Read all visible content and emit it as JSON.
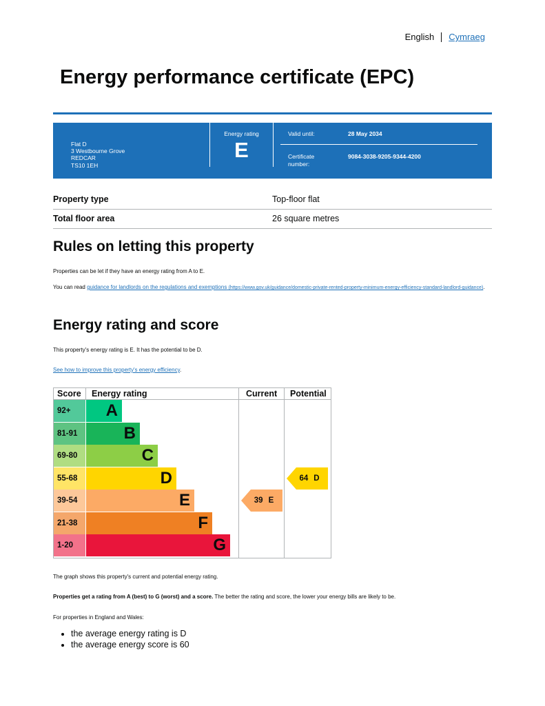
{
  "language": {
    "english": "English",
    "welsh": "Cymraeg"
  },
  "title": "Energy performance certificate (EPC)",
  "certificate": {
    "address_lines": [
      "Flat D",
      "3 Westbourne Grove",
      "REDCAR",
      "TS10 1EH"
    ],
    "energy_rating_label": "Energy rating",
    "energy_rating": "E",
    "valid_until_label": "Valid until:",
    "valid_until": "28 May 2034",
    "certificate_number_label": "Certificate number:",
    "certificate_number": "9084-3038-9205-9344-4200"
  },
  "summary": [
    {
      "label": "Property type",
      "value": "Top-floor flat"
    },
    {
      "label": "Total floor area",
      "value": "26 square metres"
    }
  ],
  "rules": {
    "heading": "Rules on letting this property",
    "para1": "Properties can be let if they have an energy rating from A to E.",
    "para2_prefix": "You can read ",
    "para2_link": "guidance for landlords on the regulations and exemptions",
    "para2_url": "(https://www.gov.uk/guidance/domestic-private-rented-property-minimum-energy-efficiency-standard-landlord-guidance)",
    "para2_suffix": "."
  },
  "rating": {
    "heading": "Energy rating and score",
    "para1": "This property's energy rating is E. It has the potential to be D.",
    "improve_link": "See how to improve this property's energy efficiency",
    "improve_suffix": "."
  },
  "chart_data": {
    "type": "table",
    "headers": {
      "score": "Score",
      "rating": "Energy rating",
      "current": "Current",
      "potential": "Potential"
    },
    "bands": [
      {
        "score": "92+",
        "letter": "A",
        "color": "#00c781",
        "score_bg": "#52c99a"
      },
      {
        "score": "81-91",
        "letter": "B",
        "color": "#19b459",
        "score_bg": "#5ec382"
      },
      {
        "score": "69-80",
        "letter": "C",
        "color": "#8dce46",
        "score_bg": "#b0dd82"
      },
      {
        "score": "55-68",
        "letter": "D",
        "color": "#ffd500",
        "score_bg": "#ffe466"
      },
      {
        "score": "39-54",
        "letter": "E",
        "color": "#fcaa65",
        "score_bg": "#fdc89a"
      },
      {
        "score": "21-38",
        "letter": "F",
        "color": "#ef8023",
        "score_bg": "#f4a76b"
      },
      {
        "score": "1-20",
        "letter": "G",
        "color": "#e9153b",
        "score_bg": "#f2728a"
      }
    ],
    "current": {
      "score": 39,
      "letter": "E",
      "color": "#fcaa65"
    },
    "potential": {
      "score": 64,
      "letter": "D",
      "color": "#ffd500"
    }
  },
  "notes": {
    "graph_note": "The graph shows this property's current and potential energy rating.",
    "ratings_bold": "Properties get a rating from A (best) to G (worst) and a score.",
    "ratings_rest": " The better the rating and score, the lower your energy bills are likely to be.",
    "england_wales": "For properties in England and Wales:",
    "bullets": [
      "the average energy rating is D",
      "the average energy score is 60"
    ]
  }
}
